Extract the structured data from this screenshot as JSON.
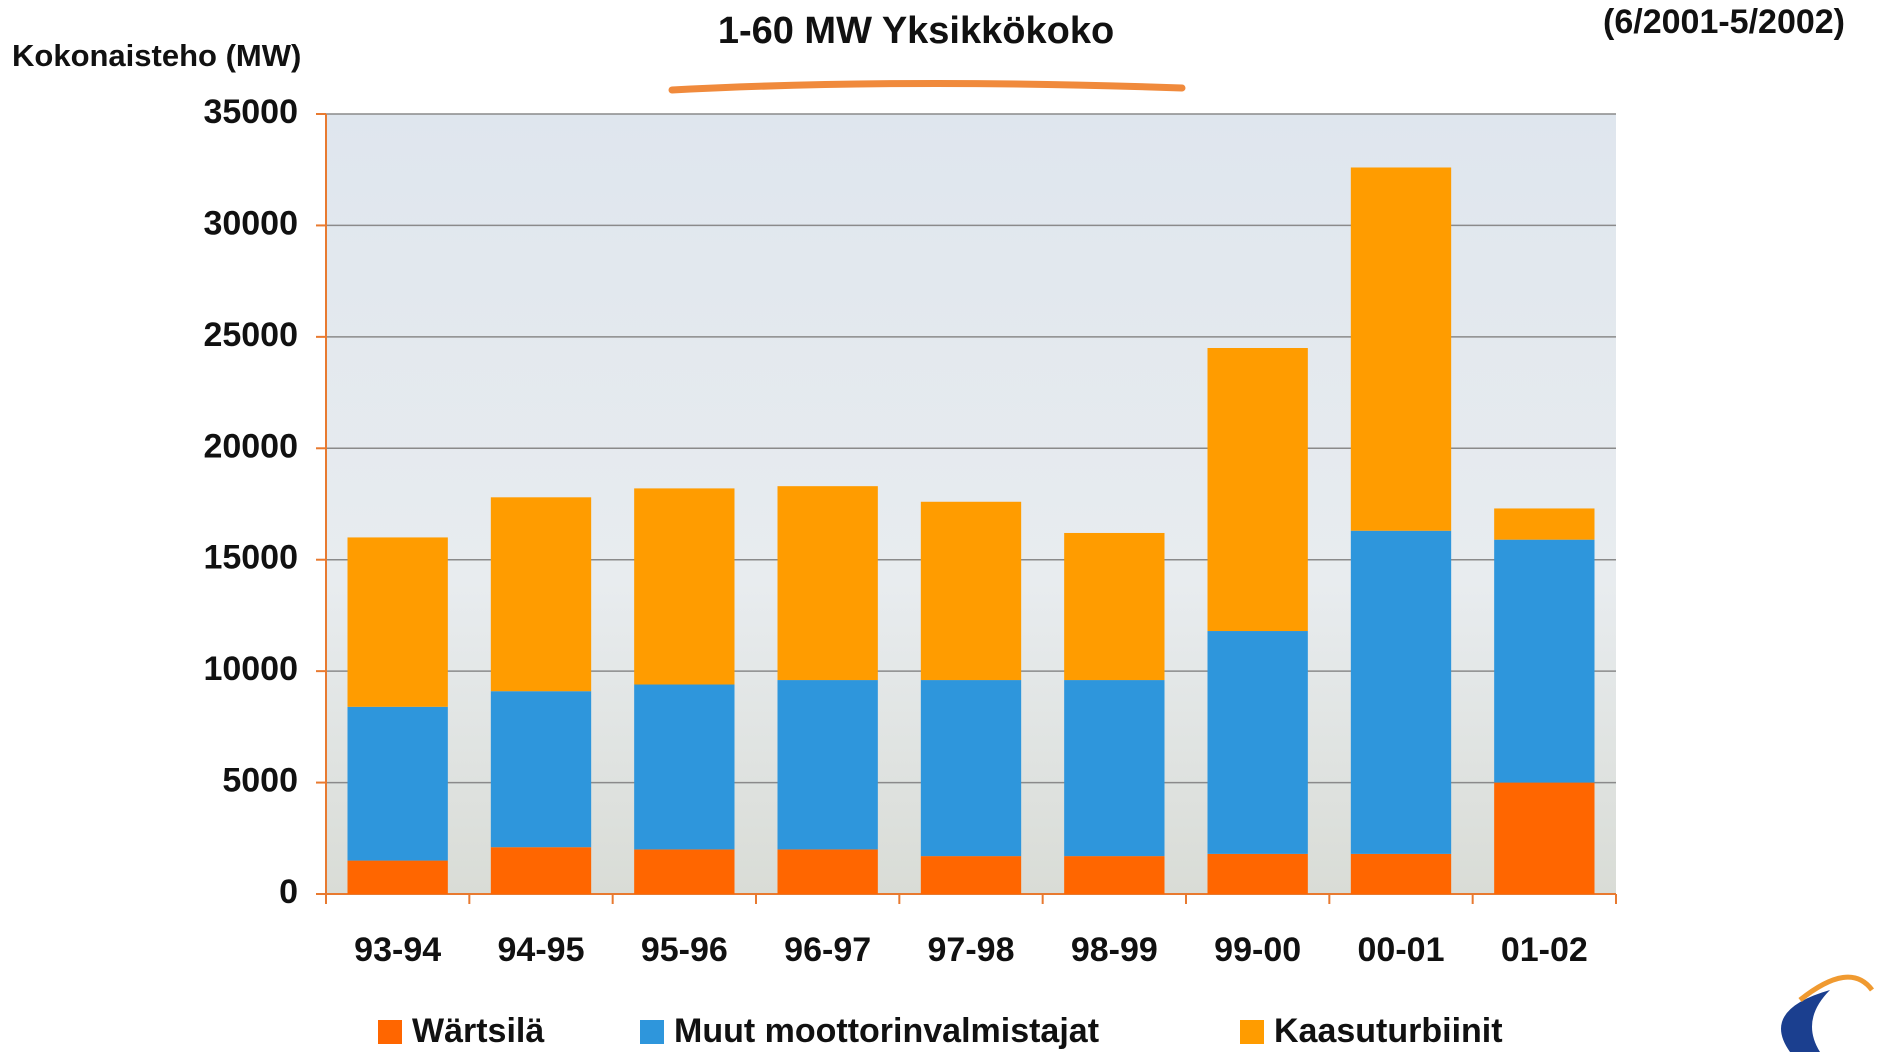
{
  "chart_data": {
    "type": "stacked_bar",
    "title": "1-60 MW Yksikkökoko",
    "subtitle": "(6/2001-5/2002)",
    "y_label": "Kokonaisteho (MW)",
    "categories": [
      "93-94",
      "94-95",
      "95-96",
      "96-97",
      "97-98",
      "98-99",
      "99-00",
      "00-01",
      "01-02"
    ],
    "series": [
      {
        "name": "Wärtsilä",
        "color": "#ff6600",
        "values": [
          1500,
          2100,
          2000,
          2000,
          1700,
          1700,
          1800,
          1800,
          5000
        ]
      },
      {
        "name": "Muut moottorinvalmistajat",
        "color": "#2e96dc",
        "values": [
          6900,
          7000,
          7400,
          7600,
          7900,
          7900,
          10000,
          14500,
          10900
        ]
      },
      {
        "name": "Kaasuturbiinit",
        "color": "#ff9c00",
        "values": [
          7600,
          8700,
          8800,
          8700,
          8000,
          6600,
          12700,
          16300,
          1400
        ]
      }
    ],
    "ylim": [
      0,
      35000
    ],
    "yticks": [
      0,
      5000,
      10000,
      15000,
      20000,
      25000,
      30000,
      35000
    ],
    "grid": true
  }
}
